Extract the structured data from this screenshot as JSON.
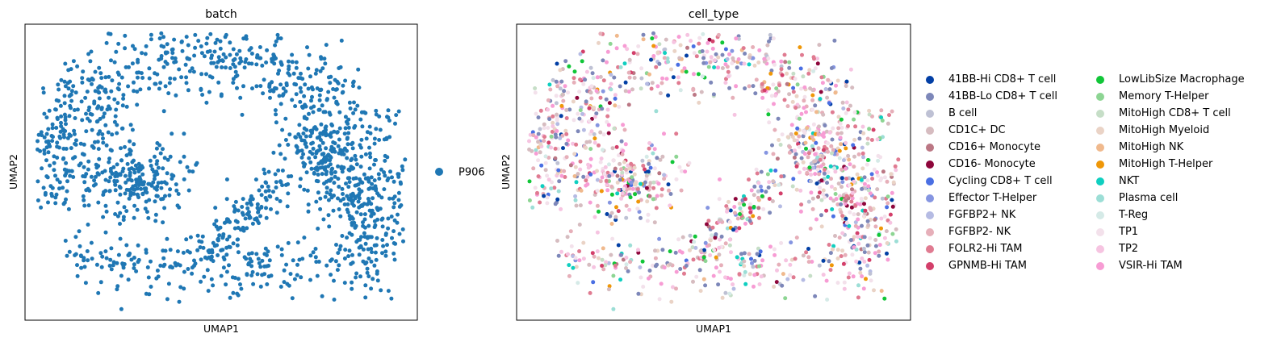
{
  "chart_data": [
    {
      "type": "scatter",
      "title": "batch",
      "xlabel": "UMAP1",
      "ylabel": "UMAP2",
      "xticks": [],
      "yticks": [],
      "legend_position": "right",
      "series": [
        {
          "name": "P906",
          "color": "#1f77b4"
        }
      ],
      "point_count": 1600
    },
    {
      "type": "scatter",
      "title": "cell_type",
      "xlabel": "UMAP1",
      "ylabel": "UMAP2",
      "xticks": [],
      "yticks": [],
      "legend_position": "right, two columns",
      "series": [
        {
          "name": "41BB-Hi CD8+ T cell",
          "color": "#023fa5"
        },
        {
          "name": "41BB-Lo CD8+ T cell",
          "color": "#7d87b9"
        },
        {
          "name": "B cell",
          "color": "#bec1d4"
        },
        {
          "name": "CD1C+ DC",
          "color": "#d6bcc0"
        },
        {
          "name": "CD16+ Monocyte",
          "color": "#bb7784"
        },
        {
          "name": "CD16- Monocyte",
          "color": "#8e063b"
        },
        {
          "name": "Cycling CD8+ T cell",
          "color": "#4a6fe3"
        },
        {
          "name": "Effector T-Helper",
          "color": "#8595e1"
        },
        {
          "name": "FGFBP2+ NK",
          "color": "#b5bbe3"
        },
        {
          "name": "FGFBP2- NK",
          "color": "#e6afb9"
        },
        {
          "name": "FOLR2-Hi TAM",
          "color": "#e07b91"
        },
        {
          "name": "GPNMB-Hi TAM",
          "color": "#d33f6a"
        },
        {
          "name": "LowLibSize Macrophage",
          "color": "#11c638"
        },
        {
          "name": "Memory T-Helper",
          "color": "#8dd593"
        },
        {
          "name": "MitoHigh CD8+ T cell",
          "color": "#c6dec7"
        },
        {
          "name": "MitoHigh Myeloid",
          "color": "#ead3c6"
        },
        {
          "name": "MitoHigh NK",
          "color": "#f0b98d"
        },
        {
          "name": "MitoHigh T-Helper",
          "color": "#ef9708"
        },
        {
          "name": "NKT",
          "color": "#0fcfc0"
        },
        {
          "name": "Plasma cell",
          "color": "#9cded6"
        },
        {
          "name": "T-Reg",
          "color": "#d5eae7"
        },
        {
          "name": "TP1",
          "color": "#f3e1eb"
        },
        {
          "name": "TP2",
          "color": "#f6c4e1"
        },
        {
          "name": "VSIR-Hi TAM",
          "color": "#f79cd4"
        }
      ],
      "point_count": 1600
    }
  ]
}
